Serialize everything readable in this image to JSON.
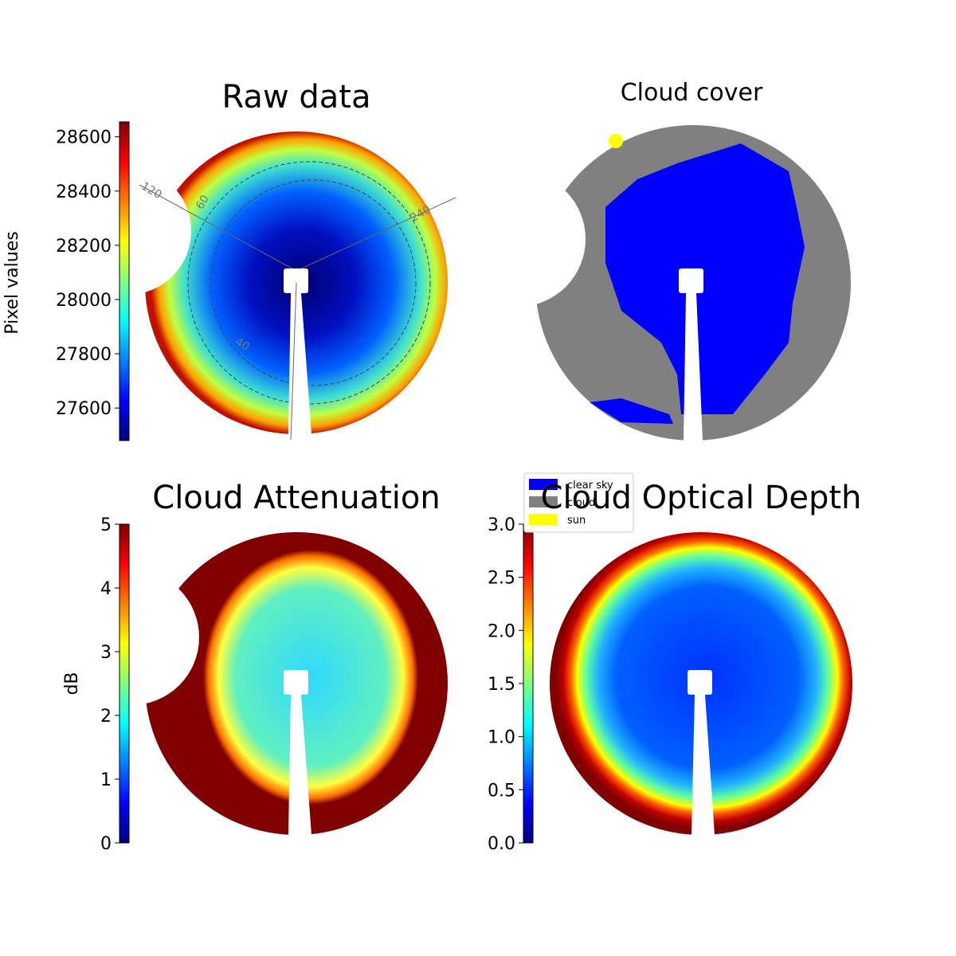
{
  "chart_data": [
    {
      "type": "image",
      "title": "Raw data",
      "ylabel": "Pixel values",
      "ylim": [
        27480,
        28655
      ],
      "yticks": [
        27600,
        27800,
        28000,
        28200,
        28400,
        28600
      ],
      "annotations": [
        "120",
        "60",
        "240",
        "40"
      ]
    },
    {
      "type": "image",
      "title": "Cloud cover",
      "categories": [
        "clear sky",
        "cloud",
        "sun"
      ],
      "colors": [
        "#0000ff",
        "#808080",
        "#ffff00"
      ]
    },
    {
      "type": "image",
      "title": "Cloud Attenuation",
      "ylabel": "dB",
      "ylim": [
        0,
        5
      ],
      "yticks": [
        0,
        1,
        2,
        3,
        4,
        5
      ]
    },
    {
      "type": "image",
      "title": "Cloud Optical Depth",
      "ylim": [
        0,
        3
      ],
      "yticks": [
        {
          "value": 0,
          "label": "0.0"
        },
        0.5,
        {
          "value": 1,
          "label": "1.0"
        },
        1.5,
        {
          "value": 2,
          "label": "2.0"
        },
        2.5,
        {
          "value": 3,
          "label": "3.0"
        }
      ]
    }
  ]
}
